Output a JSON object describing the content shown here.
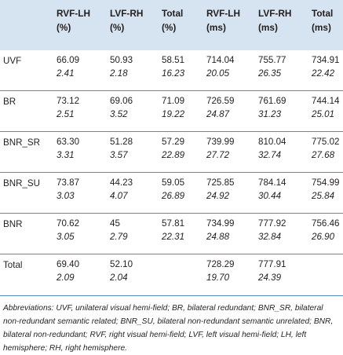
{
  "headers": [
    "",
    "RVF-LH\n(%)",
    "LVF-RH\n(%)",
    "Total\n(%)",
    "RVF-LH\n(ms)",
    "LVF-RH\n(ms)",
    "Total\n(ms)"
  ],
  "rows": [
    {
      "label": "UVF",
      "values": [
        "66.09",
        "50.93",
        "58.51",
        "714.04",
        "755.77",
        "734.91"
      ],
      "sds": [
        "2.41",
        "2.18",
        "16.23",
        "20.05",
        "26.35",
        "22.42"
      ]
    },
    {
      "label": "BR",
      "values": [
        "73.12",
        "69.06",
        "71.09",
        "726.59",
        "761.69",
        "744.14"
      ],
      "sds": [
        "2.51",
        "3.52",
        "19.22",
        "24.87",
        "31.23",
        "25.01"
      ]
    },
    {
      "label": "BNR_SR",
      "values": [
        "63.30",
        "51.28",
        "57.29",
        "739.99",
        "810.04",
        "775.02"
      ],
      "sds": [
        "3.31",
        "3.57",
        "22.89",
        "27.72",
        "32.74",
        "27.68"
      ]
    },
    {
      "label": "BNR_SU",
      "values": [
        "73.87",
        "44.23",
        "59.05",
        "725.85",
        "784.14",
        "754.99"
      ],
      "sds": [
        "3.03",
        "4.07",
        "26.89",
        "24.92",
        "30.44",
        "25.84"
      ]
    },
    {
      "label": "BNR",
      "values": [
        "70.62",
        "45",
        "57.81",
        "734.99",
        "777.92",
        "756.46"
      ],
      "sds": [
        "3.05",
        "2.79",
        "22.31",
        "24.88",
        "32.84",
        "26.90"
      ]
    },
    {
      "label": "Total",
      "values": [
        "69.40",
        "52.10",
        "",
        "728.29",
        "777.91",
        ""
      ],
      "sds": [
        "2.09",
        "2.04",
        "",
        "19.70",
        "24.39",
        ""
      ]
    }
  ],
  "footnote": "Abbreviations: UVF, unilateral visual hemi-field; BR, bilateral redundant; BNR_SR, bilateral non-redundant semantic related; BNR_SU, bilateral non-redundant semantic unrelated; BNR, bilateral non-redundant; RVF, right visual hemi-field; LVF, left visual hemi-field; LH, left hemisphere; RH, right hemisphere."
}
